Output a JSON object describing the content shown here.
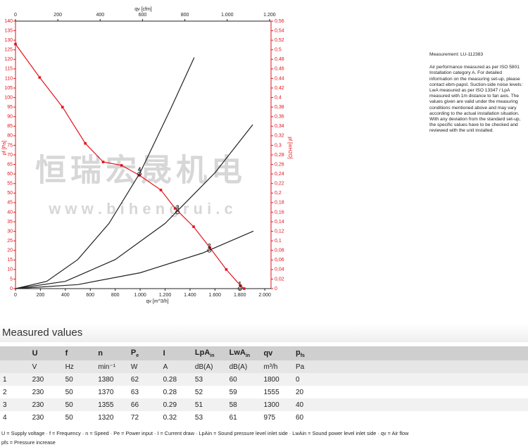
{
  "chart_data": {
    "type": "line",
    "xlabel": "qv [m^3/h]",
    "x2label": "qv [cfm]",
    "ylabel": "pf [Pa]",
    "y2label": "pf [inH2O]",
    "xlim": [
      0,
      2050
    ],
    "x2lim": [
      0,
      1207
    ],
    "ylim": [
      0,
      140
    ],
    "y2lim": [
      0,
      0.56
    ],
    "xticks": [
      0,
      200,
      400,
      600,
      800,
      {
        "value": 1000,
        "label": "1.000"
      },
      {
        "value": 1200,
        "label": "1.200"
      },
      {
        "value": 1400,
        "label": "1.400"
      },
      {
        "value": 1600,
        "label": "1.600"
      },
      {
        "value": 1800,
        "label": "1.800"
      },
      {
        "value": 2000,
        "label": "2.000"
      }
    ],
    "x2ticks": [
      0,
      200,
      400,
      600,
      800,
      {
        "value": 1000,
        "label": "1.000"
      },
      {
        "value": 1200,
        "label": "1.200"
      }
    ],
    "yticks": [
      0,
      5,
      10,
      15,
      20,
      25,
      30,
      35,
      40,
      45,
      50,
      55,
      60,
      65,
      70,
      75,
      80,
      85,
      90,
      95,
      100,
      105,
      110,
      115,
      120,
      125,
      130,
      135,
      140
    ],
    "y2ticks": [
      0,
      {
        "value": 0.02,
        "label": "0,02"
      },
      {
        "value": 0.04,
        "label": "0,04"
      },
      {
        "value": 0.06,
        "label": "0,06"
      },
      {
        "value": 0.08,
        "label": "0,08"
      },
      {
        "value": 0.1,
        "label": "0,1"
      },
      {
        "value": 0.12,
        "label": "0,12"
      },
      {
        "value": 0.14,
        "label": "0,14"
      },
      {
        "value": 0.16,
        "label": "0,16"
      },
      {
        "value": 0.18,
        "label": "0,18"
      },
      {
        "value": 0.2,
        "label": "0,2"
      },
      {
        "value": 0.22,
        "label": "0,22"
      },
      {
        "value": 0.24,
        "label": "0,24"
      },
      {
        "value": 0.26,
        "label": "0,26"
      },
      {
        "value": 0.28,
        "label": "0,28"
      },
      {
        "value": 0.3,
        "label": "0,3"
      },
      {
        "value": 0.32,
        "label": "0,32"
      },
      {
        "value": 0.34,
        "label": "0,34"
      },
      {
        "value": 0.36,
        "label": "0,36"
      },
      {
        "value": 0.38,
        "label": "0,38"
      },
      {
        "value": 0.4,
        "label": "0,4"
      },
      {
        "value": 0.42,
        "label": "0,42"
      },
      {
        "value": 0.44,
        "label": "0,44"
      },
      {
        "value": 0.46,
        "label": "0,46"
      },
      {
        "value": 0.48,
        "label": "0,48"
      },
      {
        "value": 0.5,
        "label": "0,5"
      },
      {
        "value": 0.52,
        "label": "0,52"
      },
      {
        "value": 0.54,
        "label": "0,54"
      },
      {
        "value": 0.56,
        "label": "0,56"
      }
    ],
    "axis_color": "#e3131b",
    "series": [
      {
        "color": "#e3131b",
        "markers": true,
        "x": [
          0,
          194,
          377,
          560,
          703,
          851,
          994,
          1166,
          1280,
          1429,
          1560,
          1691,
          1806,
          1834
        ],
        "values": [
          128,
          110.5,
          95,
          76,
          66.3,
          64.5,
          59.3,
          51.6,
          42,
          32.4,
          21.4,
          10,
          1.5,
          0
        ]
      },
      {
        "color": "#222222",
        "markers": false,
        "x": [
          0,
          250,
          500,
          750,
          1000,
          1250,
          1434
        ],
        "values": [
          0,
          3.8,
          15.2,
          34.1,
          60.7,
          94.8,
          121
        ]
      },
      {
        "color": "#222222",
        "markers": false,
        "x": [
          0,
          400,
          800,
          1200,
          1600,
          1903
        ],
        "values": [
          0,
          3.8,
          15.2,
          34.1,
          60.6,
          85.8
        ]
      },
      {
        "color": "#222222",
        "markers": false,
        "x": [
          0,
          500,
          1000,
          1500,
          1909
        ],
        "values": [
          0,
          2.1,
          8.3,
          18.6,
          30.1
        ]
      }
    ],
    "annotations": [
      {
        "label": "4",
        "x": 994,
        "y": 60
      },
      {
        "label": "3",
        "x": 1300,
        "y": 40
      },
      {
        "label": "2",
        "x": 1555,
        "y": 20
      },
      {
        "label": "1",
        "x": 1800,
        "y": 0
      }
    ]
  },
  "watermark": {
    "main": "恒瑞宏晟机电",
    "url": "w w w . b i h e n g r u i . c"
  },
  "note": {
    "title": "Measurement: LU-112383",
    "text": "Air performance measured as per ISO 5801 Installation category A. For detailed information on the measuring set-up, please contact ebm-papst. Suction-side noise levels: LwA measured as per ISO 13347 / LpA measured with 1m distance to fan axis. The values given are valid under the measuring conditions mentioned above and may vary according to the actual installation situation. With any deviation from the standard set-up, the specific values have to be checked and reviewed with the unit installed."
  },
  "table": {
    "title": "Measured values",
    "header": [
      {
        "text": "U"
      },
      {
        "text": "f"
      },
      {
        "text": "n"
      },
      {
        "text": "P",
        "sub": "e"
      },
      {
        "text": "I"
      },
      {
        "text": "LpA",
        "sub": "in"
      },
      {
        "text": "LwA",
        "sub": "in"
      },
      {
        "text": "qv"
      },
      {
        "text": "p",
        "sub": "fs"
      }
    ],
    "units": [
      "V",
      "Hz",
      "min⁻¹",
      "W",
      "A",
      "dB(A)",
      "dB(A)",
      "m³/h",
      "Pa"
    ],
    "rows": [
      [
        "1",
        230,
        50,
        1380,
        62,
        0.28,
        53,
        60,
        1800,
        0
      ],
      [
        "2",
        230,
        50,
        1370,
        63,
        0.28,
        52,
        59,
        1555,
        20
      ],
      [
        "3",
        230,
        50,
        1355,
        66,
        0.29,
        51,
        58,
        1300,
        40
      ],
      [
        "4",
        230,
        50,
        1320,
        72,
        0.32,
        53,
        61,
        975,
        60
      ]
    ],
    "footnotes": [
      "U = Supply voltage · f = Frequency · n = Speed · Pe = Power input · I = Current draw · LpAin = Sound pressure level inlet side · LwAin = Sound power level inlet side · qv = Air flow",
      "pfs = Pressure increase"
    ]
  }
}
